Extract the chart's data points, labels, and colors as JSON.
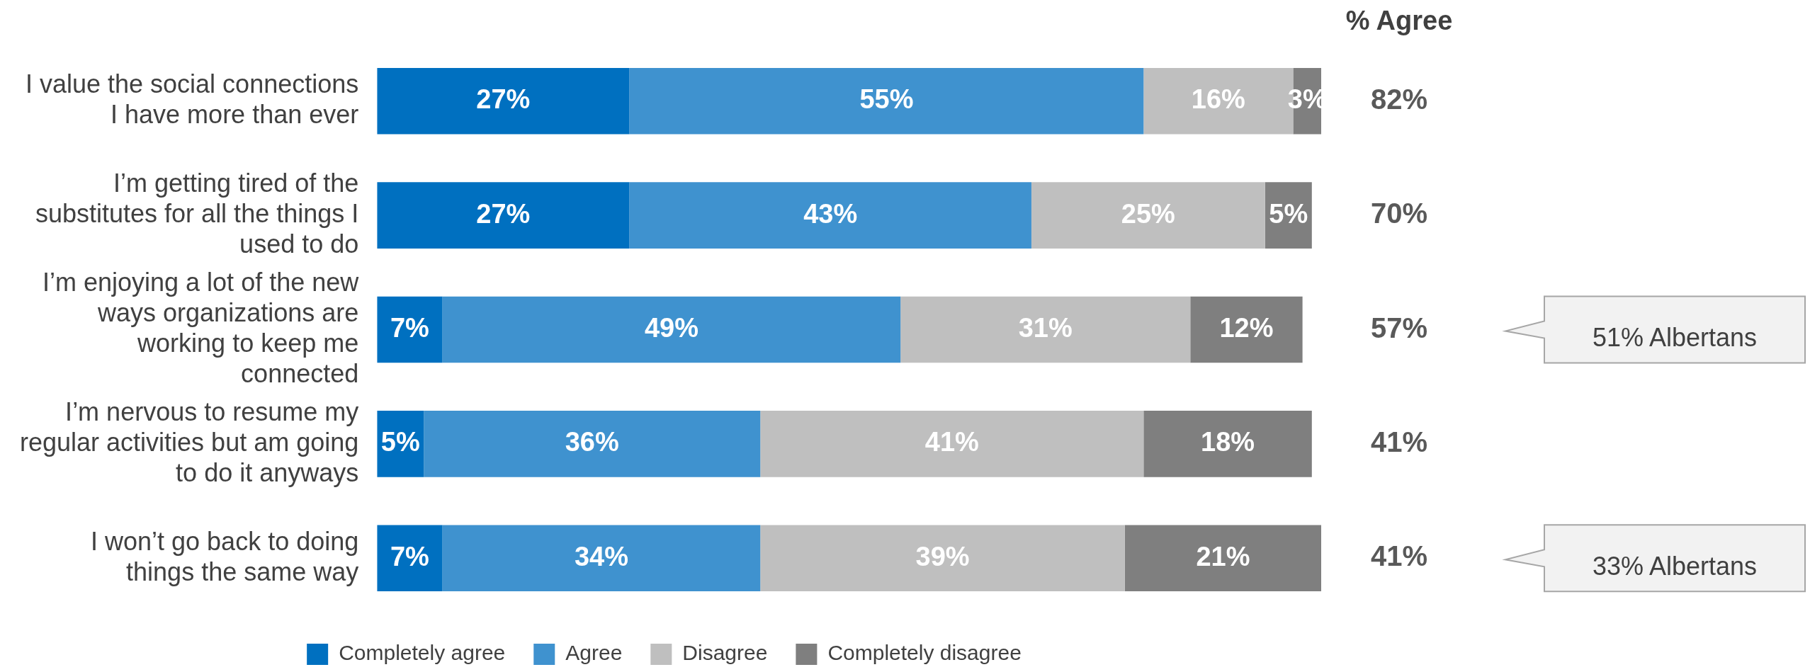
{
  "chart_data": {
    "type": "bar",
    "orientation": "horizontal",
    "stacked": true,
    "categories": [
      "I value the social connections I have more than ever",
      "I’m getting tired of the substitutes for all the things I used to do",
      "I’m enjoying a lot of the new ways organizations are working to keep me connected",
      "I’m nervous to resume my regular activities but am going to do it anyways",
      "I won’t go back to doing things the same way"
    ],
    "series": [
      {
        "name": "Completely agree",
        "color": "#0070c0",
        "values": [
          27,
          27,
          7,
          5,
          7
        ],
        "value_labels": [
          "27%",
          "27%",
          "7%",
          "5%",
          "7%"
        ]
      },
      {
        "name": "Agree",
        "color": "#3f92cf",
        "values": [
          55,
          43,
          49,
          36,
          34
        ],
        "value_labels": [
          "55%",
          "43%",
          "49%",
          "36%",
          "34%"
        ]
      },
      {
        "name": "Disagree",
        "color": "#bfbfbf",
        "values": [
          16,
          25,
          31,
          41,
          39
        ],
        "value_labels": [
          "16%",
          "25%",
          "31%",
          "41%",
          "39%"
        ]
      },
      {
        "name": "Completely disagree",
        "color": "#7f7f7f",
        "values": [
          3,
          5,
          12,
          18,
          21
        ],
        "value_labels": [
          "3%",
          "5%",
          "12%",
          "18%",
          "21%"
        ]
      }
    ],
    "tick_labels": "y",
    "legend": "bottom",
    "annotations": [
      "% Agree",
      "82%",
      "70%",
      "57%",
      "41%",
      "41%",
      "51% Albertans",
      "33% Albertans"
    ]
  }
}
